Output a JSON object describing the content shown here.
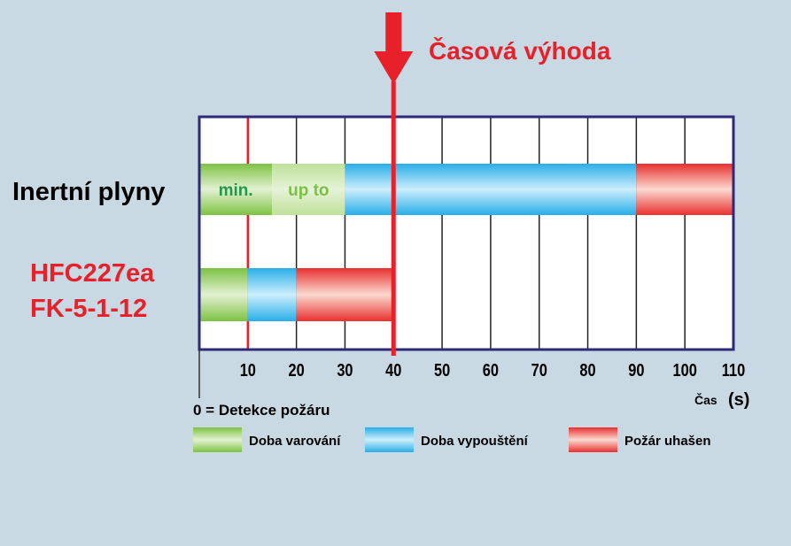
{
  "chart_data": {
    "type": "bar",
    "orientation": "horizontal-stacked-timeline",
    "annotation": "Časová výhoda",
    "annotation_x": 40,
    "xlabel": "Čas",
    "xunit": "(s)",
    "xlim": [
      0,
      110
    ],
    "xticks": [
      10,
      20,
      30,
      40,
      50,
      60,
      70,
      80,
      90,
      100,
      110
    ],
    "zero_note": "0 = Detekce požáru",
    "grid": true,
    "colors": {
      "warning": "#7dc242",
      "warning_light": "#c6e3a4",
      "discharge": "#29aee8",
      "extinguished": "#e8302f",
      "red_text": "#e8202a",
      "frame": "#2e2a7a"
    },
    "rows": [
      {
        "label": "Inertní plyny",
        "label_color": "#000000",
        "segments": [
          {
            "start": 0,
            "end": 15,
            "kind": "warning",
            "text": "min."
          },
          {
            "start": 15,
            "end": 30,
            "kind": "warning_light",
            "text": "up to"
          },
          {
            "start": 30,
            "end": 90,
            "kind": "discharge",
            "text": ""
          },
          {
            "start": 90,
            "end": 110,
            "kind": "extinguished",
            "text": ""
          }
        ]
      },
      {
        "label": "HFC227ea",
        "label2": "FK-5-1-12",
        "label_color": "#e8202a",
        "segments": [
          {
            "start": 0,
            "end": 10,
            "kind": "warning",
            "text": ""
          },
          {
            "start": 10,
            "end": 20,
            "kind": "discharge",
            "text": ""
          },
          {
            "start": 20,
            "end": 40,
            "kind": "extinguished",
            "text": ""
          }
        ]
      }
    ],
    "legend": [
      {
        "kind": "warning",
        "label": "Doba varování"
      },
      {
        "kind": "discharge",
        "label": "Doba vypouštění"
      },
      {
        "kind": "extinguished",
        "label": "Požár uhašen"
      }
    ],
    "legend_position": "bottom"
  }
}
